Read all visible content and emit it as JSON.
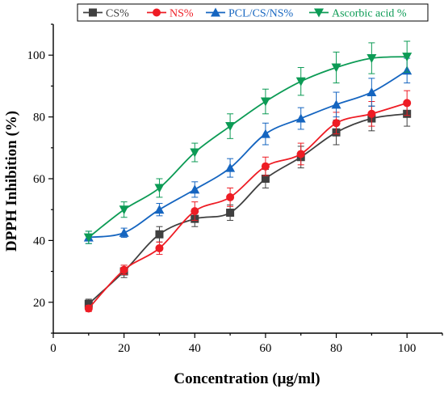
{
  "chart_data": {
    "type": "line",
    "xlabel": "Concentration (μg/ml)",
    "ylabel": "DPPH Inhibition (%)",
    "xlim": [
      0,
      110
    ],
    "ylim": [
      10,
      110
    ],
    "xticks": [
      0,
      20,
      40,
      60,
      80,
      100
    ],
    "yticks": [
      20,
      40,
      60,
      80,
      100
    ],
    "grid": false,
    "legend_position": "top",
    "x": [
      10,
      20,
      30,
      40,
      50,
      60,
      70,
      80,
      90,
      100
    ],
    "series": [
      {
        "name": "CS%",
        "color": "#404040",
        "marker": "square",
        "values": [
          19.5,
          30,
          42,
          47,
          49,
          60,
          67,
          75,
          79.5,
          81
        ],
        "errors": [
          1.5,
          2,
          2.5,
          2.5,
          2.5,
          3,
          3.5,
          4,
          4,
          4
        ]
      },
      {
        "name": "NS%",
        "color": "#ee1c24",
        "marker": "circle",
        "values": [
          18,
          30.5,
          37.5,
          49.5,
          54,
          64,
          68,
          78,
          81,
          84.5
        ],
        "errors": [
          1,
          1.5,
          2,
          3,
          3,
          3,
          3.5,
          3.5,
          4,
          4
        ]
      },
      {
        "name": "PCL/CS/NS%",
        "color": "#1565c0",
        "marker": "triangle-up",
        "values": [
          41,
          42.5,
          50,
          56.5,
          63.5,
          74.5,
          79.5,
          84,
          88,
          95
        ],
        "errors": [
          2,
          1.5,
          2,
          2.5,
          3,
          3.5,
          3.5,
          4,
          4.5,
          4
        ]
      },
      {
        "name": "Ascorbic acid %",
        "color": "#0c9b55",
        "marker": "triangle-down",
        "values": [
          41,
          50,
          57,
          68.5,
          77,
          85,
          91.5,
          96,
          99,
          99.5
        ],
        "errors": [
          2,
          2.5,
          3,
          3,
          4,
          4,
          4.5,
          5,
          5,
          5
        ]
      }
    ]
  }
}
